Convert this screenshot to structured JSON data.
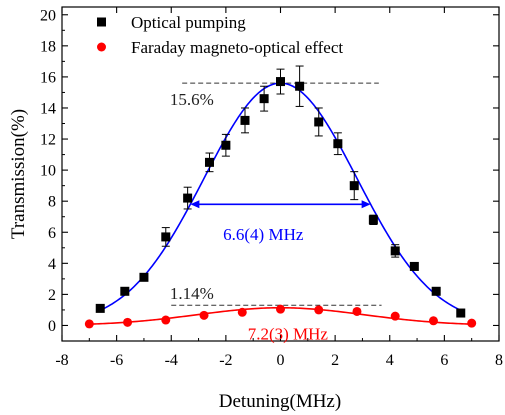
{
  "chart_data": {
    "type": "scatter",
    "xlabel": "Detuning(MHz)",
    "ylabel": "Transmission(%)",
    "xlim": [
      -8,
      8
    ],
    "ylim": [
      -1,
      20.5
    ],
    "xticks": [
      -8,
      -6,
      -4,
      -2,
      0,
      2,
      4,
      6,
      8
    ],
    "yticks": [
      0,
      2,
      4,
      6,
      8,
      10,
      12,
      14,
      16,
      18,
      20
    ],
    "legend_position": "top-left",
    "series": [
      {
        "name": "Optical pumping",
        "color": "#000000",
        "marker": "square",
        "x": [
          -6.6,
          -5.7,
          -5.0,
          -4.2,
          -3.4,
          -2.6,
          -2.0,
          -1.3,
          -0.6,
          0.0,
          0.7,
          1.4,
          2.1,
          2.7,
          3.4,
          4.2,
          4.9,
          5.7,
          6.6
        ],
        "y": [
          1.1,
          2.2,
          3.1,
          5.7,
          8.2,
          10.5,
          11.6,
          13.2,
          14.6,
          15.7,
          15.4,
          13.1,
          11.7,
          9.0,
          6.8,
          4.8,
          3.8,
          2.2,
          0.8
        ],
        "yerr": [
          0.15,
          0.15,
          0.2,
          0.6,
          0.7,
          0.6,
          0.7,
          0.8,
          0.8,
          0.8,
          1.3,
          0.9,
          0.7,
          0.9,
          0.3,
          0.4,
          0.15,
          0.15,
          0.15
        ],
        "fit": {
          "color": "#0000ff",
          "center": 0.0,
          "amplitude": 15.6,
          "fwhm": 6.6,
          "xrange": [
            -6.7,
            6.7
          ]
        }
      },
      {
        "name": "Faraday magneto-optical effect",
        "color": "#ff0000",
        "marker": "circle",
        "x": [
          -7.0,
          -5.6,
          -4.2,
          -2.8,
          -1.4,
          0.0,
          1.4,
          2.8,
          4.2,
          5.6,
          7.0
        ],
        "y": [
          0.1,
          0.2,
          0.35,
          0.65,
          0.85,
          1.05,
          1.0,
          0.9,
          0.6,
          0.3,
          0.15
        ],
        "fit": {
          "color": "#ff0000",
          "center": 0.0,
          "amplitude": 1.14,
          "fwhm": 7.2,
          "offset": 0.0,
          "xrange": [
            -7.0,
            7.0
          ]
        }
      }
    ],
    "reference_lines": [
      {
        "y": 15.6,
        "x": [
          -3.6,
          3.6
        ]
      },
      {
        "y": 1.3,
        "x": [
          -4.0,
          3.7
        ]
      }
    ],
    "annotations": [
      {
        "text": "15.6%",
        "x": -4.05,
        "y": 14.2,
        "color": "#222222"
      },
      {
        "text": "1.14%",
        "x": -4.05,
        "y": 1.7,
        "color": "#222222"
      },
      {
        "text": "6.6(4) MHz",
        "x": -2.1,
        "y": 5.5,
        "color": "#0000ff"
      },
      {
        "text": "7.2(3) MHz",
        "x": -1.2,
        "y": -0.9,
        "color": "#ff0000"
      }
    ],
    "width_arrow": {
      "x": [
        -3.3,
        3.3
      ],
      "y": 7.8,
      "color": "#0000ff"
    }
  }
}
